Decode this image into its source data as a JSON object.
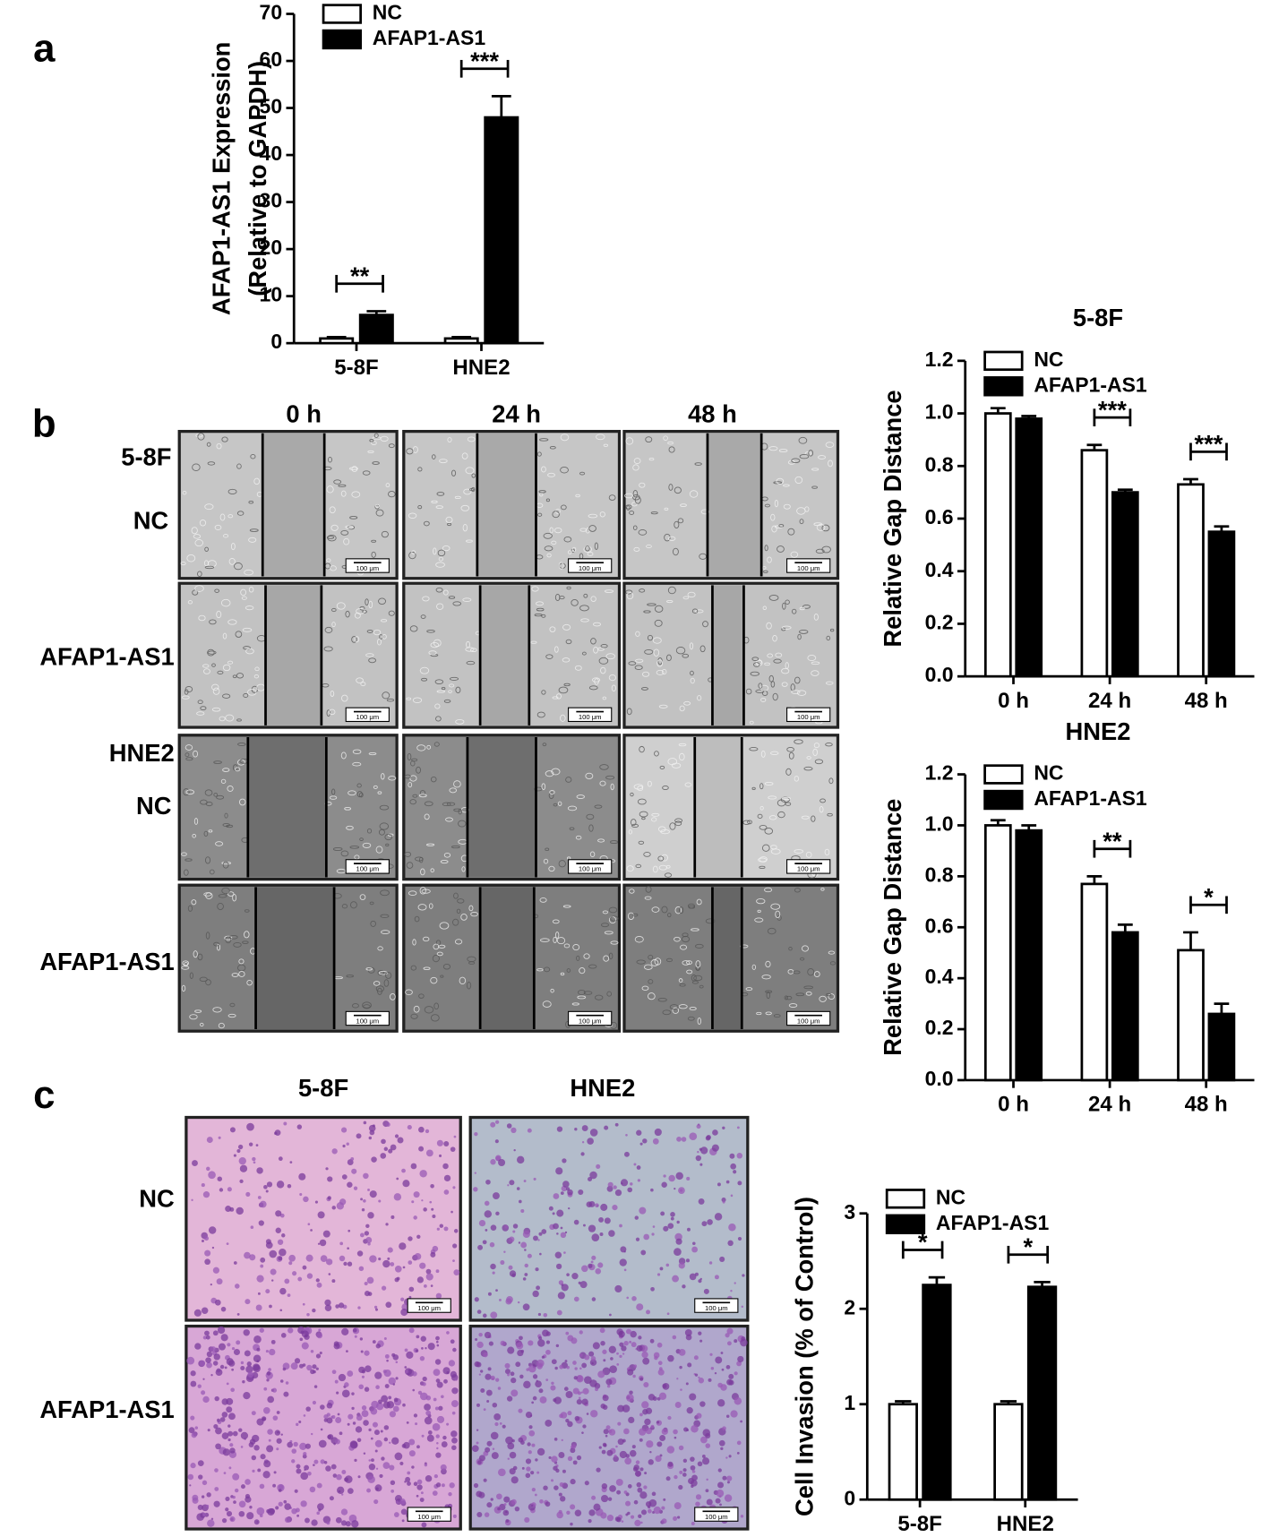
{
  "panels": [
    "a",
    "b",
    "c"
  ],
  "images": {
    "b": {
      "columns": [
        "0 h",
        "24 h",
        "48 h"
      ],
      "rows": [
        "5-8F",
        "NC",
        "AFAP1-AS1",
        "HNE2",
        "NC",
        "AFAP1-AS1"
      ]
    },
    "c": {
      "columns": [
        "5-8F",
        "HNE2"
      ],
      "rows": [
        "NC",
        "AFAP1-AS1"
      ]
    },
    "scale_bar_label": "100 μm"
  },
  "chart_data": [
    {
      "type": "bar",
      "ylabel": [
        "AFAP1-AS1 Expression",
        "(Relative to GAPDH)"
      ],
      "categories": [
        "5-8F",
        "HNE2"
      ],
      "series": [
        {
          "name": "NC",
          "color": "#ffffff",
          "values": [
            1,
            1
          ],
          "errors": [
            0.3,
            0.3
          ]
        },
        {
          "name": "AFAP1-AS1",
          "color": "#000000",
          "values": [
            6,
            48
          ],
          "errors": [
            0.8,
            4.5
          ]
        }
      ],
      "significance": [
        "**",
        "***"
      ],
      "ylim": [
        0,
        70
      ],
      "yticks": [
        0,
        10,
        20,
        30,
        40,
        50,
        60,
        70
      ],
      "legend": "upper left"
    },
    {
      "type": "bar",
      "title": "5-8F",
      "ylabel": [
        "Relative Gap Distance"
      ],
      "categories": [
        "0 h",
        "24 h",
        "48 h"
      ],
      "series": [
        {
          "name": "NC",
          "color": "#ffffff",
          "values": [
            1.0,
            0.86,
            0.73
          ],
          "errors": [
            0.02,
            0.02,
            0.02
          ]
        },
        {
          "name": "AFAP1-AS1",
          "color": "#000000",
          "values": [
            0.98,
            0.7,
            0.55
          ],
          "errors": [
            0.01,
            0.01,
            0.02
          ]
        }
      ],
      "significance": [
        null,
        "***",
        "***"
      ],
      "ylim": [
        0,
        1.2
      ],
      "yticks": [
        {
          "value": 0,
          "label": "0.0"
        },
        0.2,
        0.4,
        0.6,
        0.8,
        {
          "value": 1,
          "label": "1.0"
        },
        1.2
      ],
      "legend": "upper left"
    },
    {
      "type": "bar",
      "title": "HNE2",
      "ylabel": [
        "Relative Gap Distance"
      ],
      "categories": [
        "0 h",
        "24 h",
        "48 h"
      ],
      "series": [
        {
          "name": "NC",
          "color": "#ffffff",
          "values": [
            1.0,
            0.77,
            0.51
          ],
          "errors": [
            0.02,
            0.03,
            0.07
          ]
        },
        {
          "name": "AFAP1-AS1",
          "color": "#000000",
          "values": [
            0.98,
            0.58,
            0.26
          ],
          "errors": [
            0.02,
            0.03,
            0.04
          ]
        }
      ],
      "significance": [
        null,
        "**",
        "*"
      ],
      "ylim": [
        0,
        1.2
      ],
      "yticks": [
        {
          "value": 0,
          "label": "0.0"
        },
        0.2,
        0.4,
        0.6,
        0.8,
        {
          "value": 1,
          "label": "1.0"
        },
        1.2
      ],
      "legend": "upper left"
    },
    {
      "type": "bar",
      "ylabel": [
        "Cell Invasion (% of Control)"
      ],
      "categories": [
        "5-8F",
        "HNE2"
      ],
      "series": [
        {
          "name": "NC",
          "color": "#ffffff",
          "values": [
            1,
            1
          ],
          "errors": [
            0.03,
            0.03
          ]
        },
        {
          "name": "AFAP1-AS1",
          "color": "#000000",
          "values": [
            2.25,
            2.23
          ],
          "errors": [
            0.08,
            0.05
          ]
        }
      ],
      "significance": [
        "*",
        "*"
      ],
      "ylim": [
        0,
        3
      ],
      "yticks": [
        0,
        1,
        2,
        3
      ],
      "legend": "upper left"
    }
  ]
}
